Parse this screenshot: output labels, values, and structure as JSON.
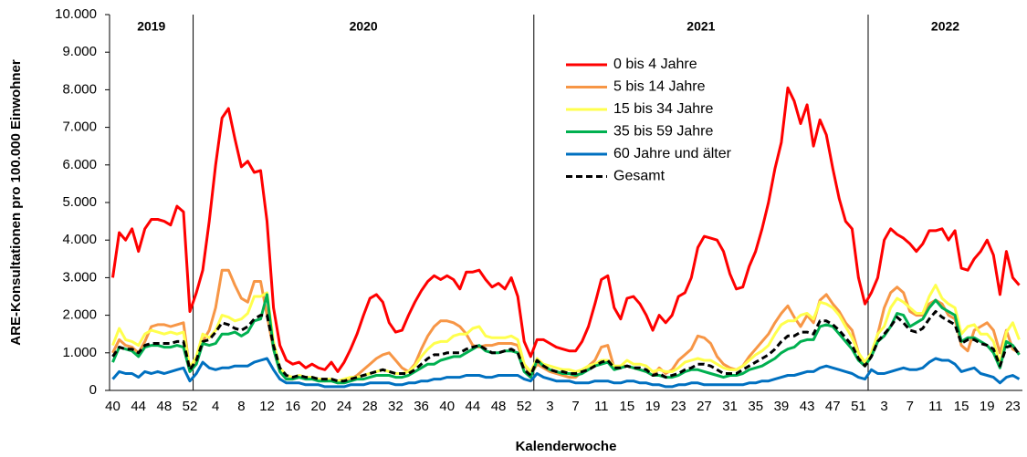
{
  "chart_data": {
    "type": "line",
    "y_label": "ARE-Konsultationen pro 100.000 Einwohner",
    "x_label": "Kalenderwoche",
    "annotations": [
      "2019",
      "2020",
      "2021",
      "2022"
    ],
    "categories": [
      "40",
      null,
      null,
      null,
      "44",
      null,
      null,
      null,
      "48",
      null,
      null,
      null,
      "52",
      null,
      null,
      null,
      "4",
      null,
      null,
      null,
      "8",
      null,
      null,
      null,
      "12",
      null,
      null,
      null,
      "16",
      null,
      null,
      null,
      "20",
      null,
      null,
      null,
      "24",
      null,
      null,
      null,
      "28",
      null,
      null,
      null,
      "32",
      null,
      null,
      null,
      "36",
      null,
      null,
      null,
      "40",
      null,
      null,
      null,
      "44",
      null,
      null,
      null,
      "48",
      null,
      null,
      null,
      "52",
      null,
      null,
      null,
      "3",
      null,
      null,
      null,
      "7",
      null,
      null,
      null,
      "11",
      null,
      null,
      null,
      "15",
      null,
      null,
      null,
      "19",
      null,
      null,
      null,
      "23",
      null,
      null,
      null,
      "27",
      null,
      null,
      null,
      "31",
      null,
      null,
      null,
      "35",
      null,
      null,
      null,
      "39",
      null,
      null,
      null,
      "43",
      null,
      null,
      null,
      "47",
      null,
      null,
      null,
      "51",
      null,
      null,
      null,
      "3",
      null,
      null,
      null,
      "7",
      null,
      null,
      null,
      "11",
      null,
      null,
      null,
      "15",
      null,
      null,
      null,
      "19",
      null,
      null,
      null,
      "23",
      null
    ],
    "ylim": [
      0,
      10000
    ],
    "yticks": [
      0,
      {
        "value": 1000,
        "label": "1.000"
      },
      {
        "value": 2000,
        "label": "2.000"
      },
      {
        "value": 3000,
        "label": "3.000"
      },
      {
        "value": 4000,
        "label": "4.000"
      },
      {
        "value": 5000,
        "label": "5.000"
      },
      {
        "value": 6000,
        "label": "6.000"
      },
      {
        "value": 7000,
        "label": "7.000"
      },
      {
        "value": 8000,
        "label": "8.000"
      },
      {
        "value": 9000,
        "label": "9.000"
      },
      {
        "value": 10000,
        "label": "10.000"
      }
    ],
    "grid": false,
    "series": [
      {
        "name": "0 bis 4 Jahre",
        "color": "#ff0000",
        "values": [
          3000,
          4200,
          4000,
          4300,
          3700,
          4300,
          4550,
          4550,
          4500,
          4400,
          4900,
          4750,
          2100,
          2600,
          3200,
          4500,
          6000,
          7250,
          7500,
          6700,
          5950,
          6100,
          5800,
          5850,
          4500,
          2200,
          1200,
          800,
          700,
          750,
          600,
          700,
          600,
          550,
          750,
          500,
          750,
          1100,
          1500,
          2000,
          2450,
          2550,
          2350,
          1800,
          1550,
          1600,
          2000,
          2350,
          2650,
          2900,
          3050,
          2950,
          3050,
          2950,
          2700,
          3150,
          3150,
          3200,
          2950,
          2750,
          2850,
          2700,
          3000,
          2500,
          1300,
          900,
          1350,
          1350,
          1250,
          1150,
          1100,
          1050,
          1050,
          1300,
          1700,
          2300,
          2950,
          3050,
          2200,
          1900,
          2450,
          2500,
          2300,
          2000,
          1600,
          2000,
          1800,
          2000,
          2500,
          2600,
          3000,
          3800,
          4100,
          4050,
          4000,
          3700,
          3100,
          2700,
          2750,
          3300,
          3700,
          4300,
          5000,
          5900,
          6600,
          8050,
          7700,
          7100,
          7600,
          6500,
          7200,
          6800,
          5900,
          5100,
          4500,
          4300,
          3000,
          2300,
          2600,
          3000,
          4000,
          4300,
          4150,
          4050,
          3900,
          3700,
          3900,
          4250,
          4250,
          4300,
          4000,
          4250,
          3250,
          3200,
          3500,
          3700,
          4000,
          3600,
          2550,
          3700,
          3000,
          2800
        ]
      },
      {
        "name": "5 bis 14 Jahre",
        "color": "#f79646",
        "values": [
          1000,
          1350,
          1200,
          1150,
          1000,
          1300,
          1700,
          1750,
          1750,
          1700,
          1750,
          1800,
          500,
          800,
          1300,
          1600,
          2200,
          3200,
          3200,
          2800,
          2450,
          2350,
          2900,
          2900,
          2000,
          1100,
          500,
          300,
          300,
          350,
          300,
          350,
          300,
          250,
          300,
          200,
          250,
          300,
          400,
          550,
          700,
          850,
          950,
          1000,
          800,
          600,
          500,
          700,
          1100,
          1450,
          1700,
          1850,
          1850,
          1800,
          1700,
          1500,
          1200,
          1150,
          1200,
          1200,
          1250,
          1250,
          1250,
          1200,
          700,
          400,
          700,
          600,
          500,
          450,
          400,
          350,
          350,
          500,
          650,
          800,
          1150,
          1200,
          600,
          650,
          650,
          600,
          550,
          500,
          400,
          600,
          450,
          550,
          800,
          950,
          1100,
          1450,
          1400,
          1250,
          900,
          700,
          600,
          550,
          650,
          900,
          1100,
          1300,
          1500,
          1800,
          2050,
          2250,
          1950,
          1700,
          2000,
          1800,
          2400,
          2550,
          2300,
          2100,
          1800,
          1600,
          1000,
          700,
          900,
          1500,
          2200,
          2600,
          2750,
          2600,
          2100,
          2000,
          2000,
          2300,
          2400,
          2300,
          2000,
          1900,
          1200,
          1050,
          1600,
          1700,
          1800,
          1600,
          1000,
          1600,
          1100,
          1000
        ]
      },
      {
        "name": "15 bis 34 Jahre",
        "color": "#ffff4d",
        "values": [
          1200,
          1650,
          1350,
          1300,
          1200,
          1500,
          1600,
          1550,
          1500,
          1550,
          1500,
          1550,
          600,
          900,
          1500,
          1400,
          1600,
          2000,
          1950,
          1850,
          1900,
          2050,
          2500,
          2500,
          2600,
          1300,
          600,
          400,
          350,
          400,
          350,
          350,
          300,
          300,
          300,
          250,
          300,
          350,
          350,
          400,
          450,
          500,
          550,
          500,
          450,
          450,
          500,
          650,
          900,
          1100,
          1250,
          1300,
          1300,
          1450,
          1500,
          1500,
          1650,
          1700,
          1450,
          1400,
          1400,
          1400,
          1450,
          1350,
          700,
          500,
          850,
          700,
          650,
          600,
          550,
          550,
          500,
          550,
          650,
          700,
          800,
          800,
          650,
          650,
          800,
          700,
          700,
          650,
          500,
          550,
          500,
          500,
          600,
          750,
          800,
          850,
          800,
          800,
          700,
          600,
          550,
          550,
          650,
          800,
          950,
          1050,
          1200,
          1500,
          1750,
          1850,
          1850,
          2000,
          2050,
          1900,
          2350,
          2300,
          2200,
          2000,
          1700,
          1400,
          1000,
          750,
          1000,
          1500,
          1700,
          2200,
          2450,
          2350,
          2200,
          2050,
          2050,
          2500,
          2800,
          2450,
          2300,
          2200,
          1500,
          1700,
          1750,
          1500,
          1500,
          1300,
          700,
          1550,
          1800,
          1350
        ]
      },
      {
        "name": "35 bis 59 Jahre",
        "color": "#00b050",
        "values": [
          750,
          1150,
          1100,
          1050,
          900,
          1150,
          1200,
          1200,
          1150,
          1150,
          1200,
          1150,
          500,
          700,
          1250,
          1200,
          1250,
          1500,
          1500,
          1550,
          1450,
          1550,
          1850,
          1900,
          2550,
          1100,
          500,
          300,
          300,
          350,
          300,
          300,
          250,
          250,
          250,
          200,
          200,
          250,
          300,
          300,
          350,
          400,
          400,
          400,
          350,
          350,
          400,
          500,
          600,
          700,
          700,
          800,
          850,
          900,
          900,
          1000,
          1100,
          1200,
          1050,
          1000,
          1000,
          1050,
          1050,
          1000,
          500,
          350,
          800,
          650,
          550,
          500,
          450,
          450,
          400,
          450,
          550,
          650,
          700,
          750,
          550,
          600,
          650,
          600,
          550,
          500,
          400,
          400,
          350,
          350,
          400,
          500,
          550,
          550,
          500,
          450,
          400,
          350,
          400,
          400,
          450,
          550,
          600,
          650,
          750,
          850,
          1000,
          1100,
          1150,
          1300,
          1350,
          1350,
          1700,
          1750,
          1700,
          1500,
          1300,
          1100,
          800,
          650,
          900,
          1300,
          1450,
          1700,
          2050,
          2000,
          1700,
          1800,
          1900,
          2200,
          2400,
          2200,
          2100,
          2000,
          1300,
          1400,
          1400,
          1300,
          1200,
          1000,
          600,
          1300,
          1200,
          950
        ]
      },
      {
        "name": "60 Jahre und älter",
        "color": "#0070c0",
        "values": [
          300,
          500,
          450,
          450,
          350,
          500,
          450,
          500,
          450,
          500,
          550,
          600,
          250,
          450,
          750,
          600,
          550,
          600,
          600,
          650,
          650,
          650,
          750,
          800,
          850,
          550,
          300,
          200,
          200,
          200,
          150,
          150,
          150,
          100,
          100,
          100,
          100,
          150,
          150,
          150,
          200,
          200,
          200,
          200,
          150,
          150,
          200,
          200,
          250,
          250,
          300,
          300,
          350,
          350,
          350,
          400,
          400,
          400,
          350,
          350,
          400,
          400,
          400,
          400,
          300,
          250,
          450,
          350,
          300,
          250,
          250,
          250,
          200,
          200,
          200,
          250,
          250,
          250,
          200,
          200,
          250,
          250,
          200,
          200,
          150,
          150,
          100,
          100,
          150,
          150,
          200,
          200,
          150,
          150,
          150,
          150,
          150,
          150,
          150,
          200,
          200,
          250,
          250,
          300,
          350,
          400,
          400,
          450,
          500,
          500,
          600,
          650,
          600,
          550,
          500,
          450,
          350,
          300,
          550,
          450,
          450,
          500,
          550,
          600,
          550,
          550,
          600,
          750,
          850,
          800,
          800,
          700,
          500,
          550,
          600,
          450,
          400,
          350,
          200,
          350,
          400,
          300
        ]
      },
      {
        "name": "Gesamt",
        "color": "#000000",
        "dashed": true,
        "values": [
          900,
          1150,
          1100,
          1100,
          1000,
          1200,
          1250,
          1250,
          1250,
          1250,
          1300,
          1300,
          550,
          800,
          1300,
          1350,
          1550,
          1800,
          1750,
          1650,
          1600,
          1700,
          1900,
          2000,
          2000,
          1200,
          600,
          400,
          350,
          400,
          350,
          350,
          300,
          300,
          300,
          250,
          250,
          300,
          350,
          400,
          450,
          500,
          550,
          500,
          450,
          450,
          450,
          550,
          700,
          850,
          950,
          950,
          1000,
          1000,
          1000,
          1100,
          1150,
          1200,
          1100,
          1000,
          1000,
          1050,
          1100,
          1000,
          550,
          400,
          800,
          650,
          550,
          500,
          500,
          450,
          450,
          500,
          550,
          650,
          750,
          800,
          600,
          600,
          650,
          600,
          600,
          550,
          400,
          450,
          350,
          400,
          450,
          550,
          600,
          700,
          700,
          650,
          550,
          450,
          450,
          450,
          550,
          650,
          750,
          850,
          950,
          1100,
          1300,
          1450,
          1450,
          1550,
          1550,
          1500,
          1850,
          1850,
          1750,
          1600,
          1400,
          1200,
          850,
          650,
          900,
          1300,
          1500,
          1700,
          1950,
          1800,
          1600,
          1550,
          1650,
          1900,
          2100,
          1950,
          1850,
          1750,
          1250,
          1350,
          1350,
          1250,
          1200,
          1100,
          650,
          1150,
          1200,
          950
        ]
      }
    ]
  }
}
